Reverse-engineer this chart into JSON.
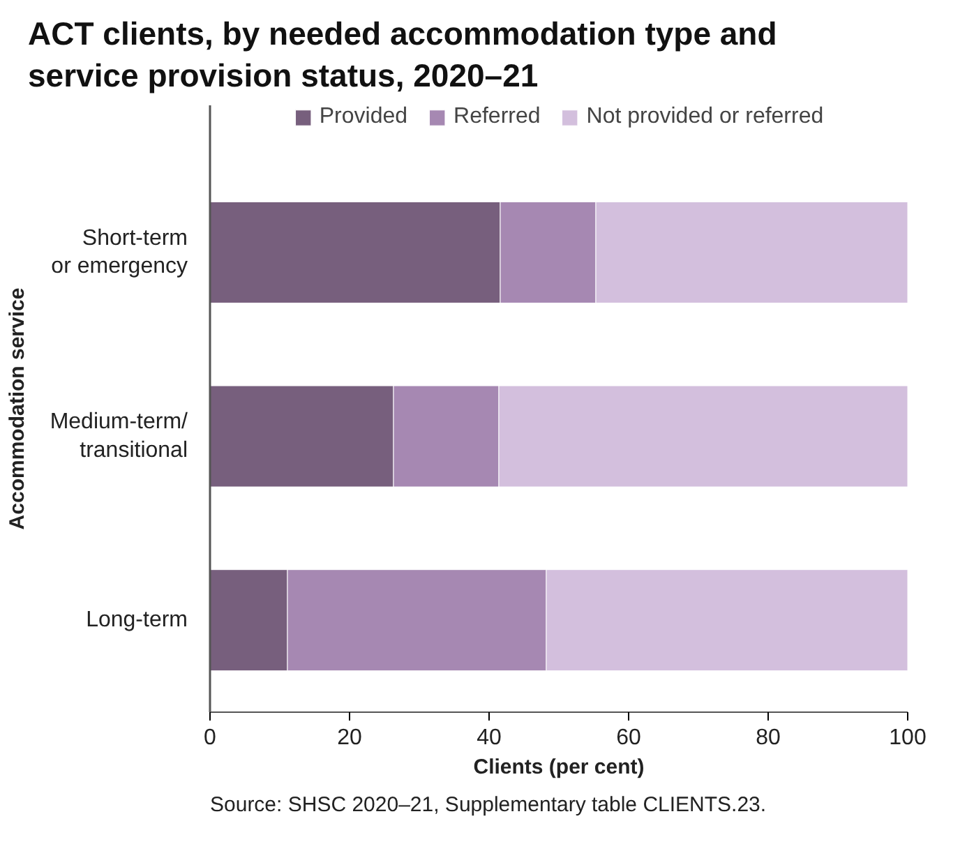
{
  "chart_data": {
    "type": "bar",
    "orientation": "horizontal",
    "stacked": true,
    "title": "ACT clients, by needed accommodation type and service provision status, 2020–21",
    "categories": [
      "Short-term or emergency",
      "Medium-term/ transitional",
      "Long-term"
    ],
    "series": [
      {
        "name": "Provided",
        "color": "#775f7d",
        "values": [
          41.6,
          26.3,
          11.1
        ]
      },
      {
        "name": "Referred",
        "color": "#a688b2",
        "values": [
          13.7,
          15.1,
          37.1
        ]
      },
      {
        "name": "Not provided or referred",
        "color": "#d3bfdd",
        "values": [
          44.7,
          58.6,
          51.8
        ]
      }
    ],
    "xlim": [
      0,
      100
    ],
    "xticks": [
      0,
      20,
      40,
      60,
      80,
      100
    ],
    "xlabel": "Clients (per cent)",
    "ylabel": "Accommodation service",
    "legend": "top",
    "grid": false,
    "annotations": [
      "Source: SHSC 2020–21, Supplementary table CLIENTS.23."
    ]
  }
}
